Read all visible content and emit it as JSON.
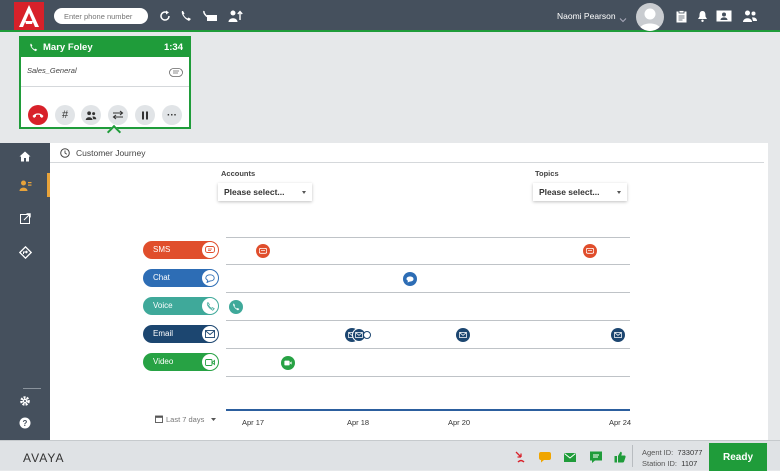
{
  "header": {
    "phone_placeholder": "Enter phone number",
    "user_name": "Naomi Pearson"
  },
  "call": {
    "name": "Mary Foley",
    "timer": "1:34",
    "queue": "Sales_General",
    "controls": [
      {
        "name": "end-call-button",
        "icon": "phone-hangup"
      },
      {
        "name": "dialpad-button",
        "icon": "hash",
        "label": "#"
      },
      {
        "name": "conference-button",
        "icon": "people"
      },
      {
        "name": "transfer-button",
        "icon": "transfer"
      },
      {
        "name": "hold-button",
        "icon": "pause"
      },
      {
        "name": "more-button",
        "icon": "ellipsis",
        "label": "···"
      }
    ]
  },
  "journey": {
    "title": "Customer Journey",
    "accounts_label": "Accounts",
    "accounts_value": "Please select...",
    "topics_label": "Topics",
    "topics_value": "Please select...",
    "range": "Last 7 days",
    "ticks": [
      "Apr 17",
      "Apr 18",
      "Apr 20",
      "Apr 24"
    ],
    "channels": [
      {
        "label": "SMS",
        "color": "#e04e2c"
      },
      {
        "label": "Chat",
        "color": "#2d6db5"
      },
      {
        "label": "Voice",
        "color": "#3fa99a"
      },
      {
        "label": "Email",
        "color": "#1c4670"
      },
      {
        "label": "Video",
        "color": "#27a244"
      }
    ]
  },
  "footer": {
    "brand": "AVAYA",
    "agent_label": "Agent ID:",
    "agent_id": "733077",
    "station_label": "Station ID:",
    "station_id": "1107",
    "status": "Ready"
  },
  "colors": {
    "accent": "#1f9c3a",
    "topbar": "#45505d",
    "end_call": "#d8212a",
    "logo": "#d8212a",
    "nav_active": "#e8a33a"
  }
}
